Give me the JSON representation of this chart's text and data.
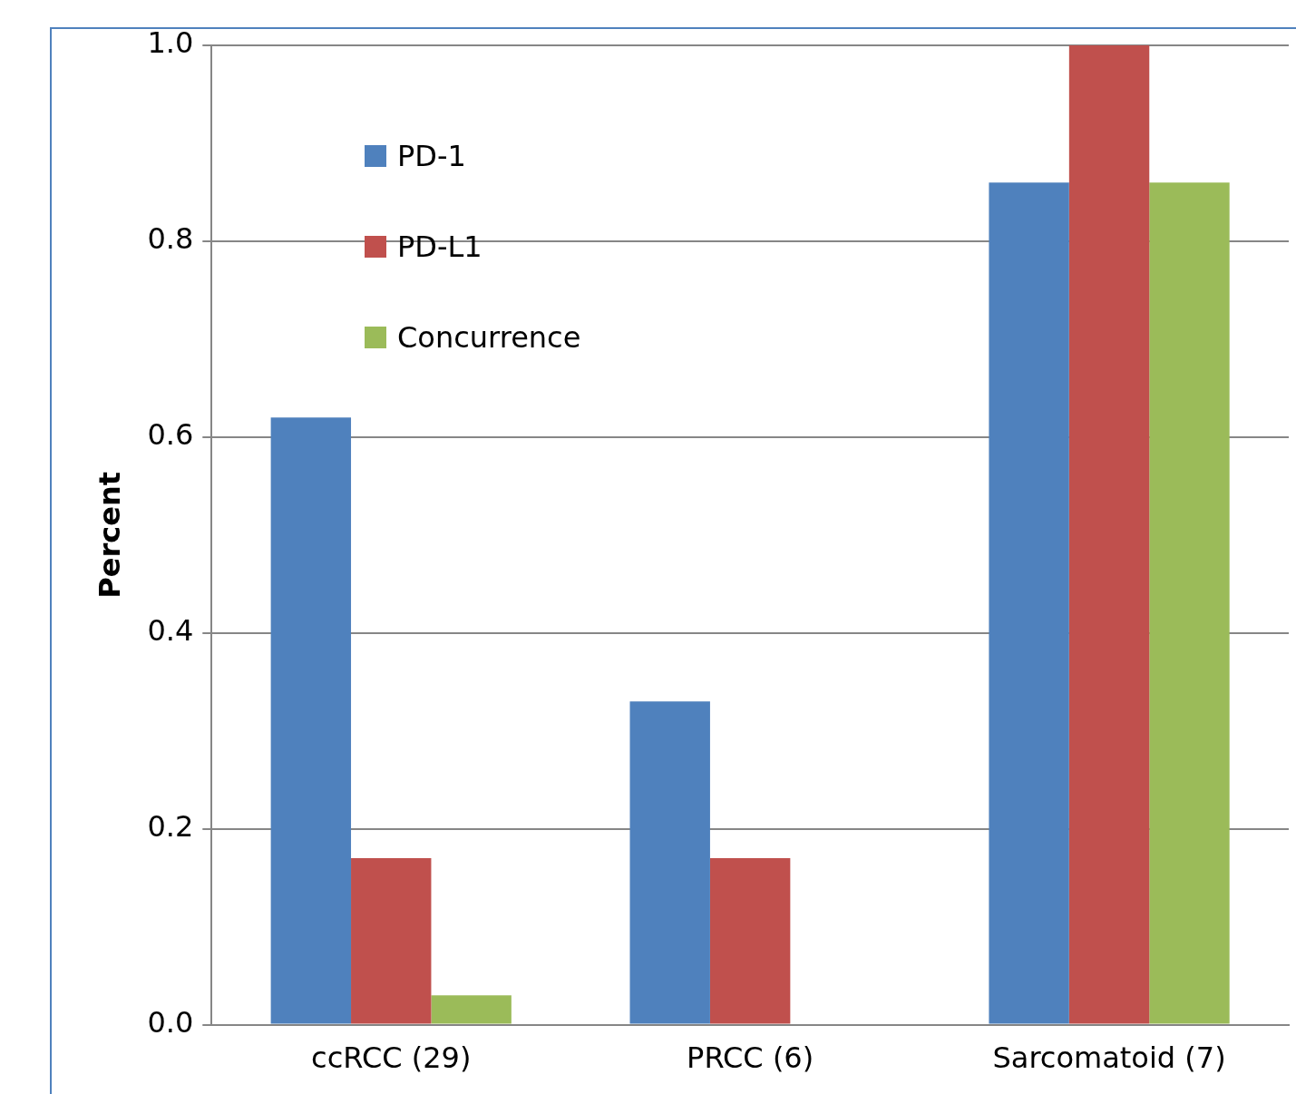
{
  "chart_data": {
    "type": "bar",
    "ylabel": "Percent",
    "categories": [
      "ccRCC (29)",
      "PRCC (6)",
      "Sarcomatoid (7)"
    ],
    "series": [
      {
        "name": "PD-1",
        "color": "#4f81bd",
        "values": [
          0.62,
          0.33,
          0.86
        ]
      },
      {
        "name": "PD-L1",
        "color": "#c0504d",
        "values": [
          0.17,
          0.17,
          1.0
        ]
      },
      {
        "name": "Concurrence",
        "color": "#9bbb59",
        "values": [
          0.03,
          0,
          0.86
        ]
      }
    ],
    "ylim": [
      0,
      1
    ],
    "yticks": [
      {
        "value": 0,
        "label": "0.0"
      },
      0.2,
      0.4,
      0.6,
      0.8,
      {
        "value": 1,
        "label": "1.0"
      }
    ],
    "grid": "y",
    "legend": "top left"
  }
}
